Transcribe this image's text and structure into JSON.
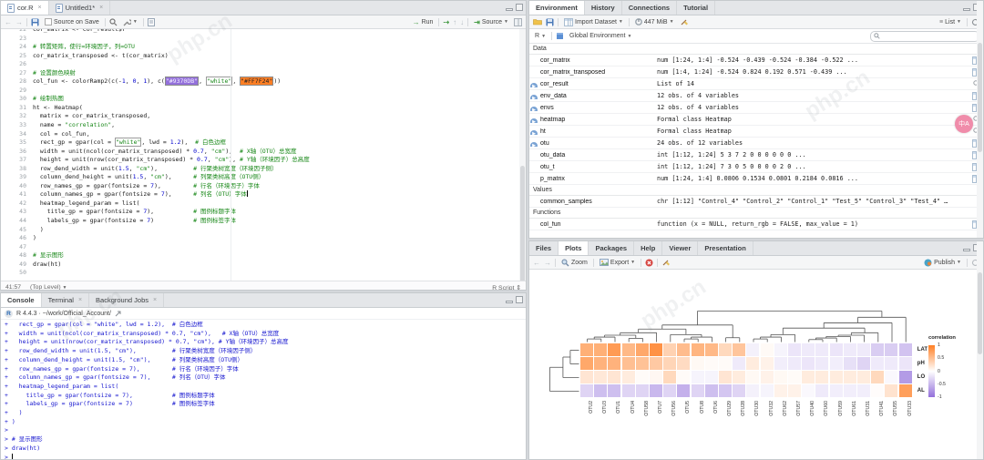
{
  "editor": {
    "tabs": [
      {
        "label": "cor.R",
        "active": true
      },
      {
        "label": "Untitled1*",
        "active": false
      }
    ],
    "toolbar": {
      "source_on_save": "Source on Save",
      "run_label": "Run",
      "source_label": "Source"
    },
    "first_line_number": 22,
    "cursor_line": 41,
    "code_lines": [
      "cor_matrix <- cor_result$r",
      "",
      "# 转置矩阵，使行=环境因子，列=OTU",
      "cor_matrix_transposed <- t(cor_matrix)",
      "",
      "# 设置颜色映射",
      "col_fun <- colorRamp2(c(-1, 0, 1), c(\"#9370DB\", \"white\", \"#FF7F24\"))",
      "",
      "# 绘制热图",
      "ht <- Heatmap(",
      "  matrix = cor_matrix_transposed,",
      "  name = \"correlation\",",
      "  col = col_fun,",
      "  rect_gp = gpar(col = \"white\", lwd = 1.2),  # 白色边框",
      "  width = unit(ncol(cor_matrix_transposed) * 0.7, \"cm\"),  # X轴（OTU）总宽度",
      "  height = unit(nrow(cor_matrix_transposed) * 0.7, \"cm\"), # Y轴（环境因子）总高度",
      "  row_dend_width = unit(1.5, \"cm\"),          # 行聚类树宽度（环境因子侧）",
      "  column_dend_height = unit(1.5, \"cm\"),      # 列聚类树高度（OTU侧）",
      "  row_names_gp = gpar(fontsize = 7),         # 行名（环境因子）字体",
      "  column_names_gp = gpar(fontsize = 7),      # 列名（OTU）字体",
      "  heatmap_legend_param = list(",
      "    title_gp = gpar(fontsize = 7),           # 图例标题字体",
      "    labels_gp = gpar(fontsize = 7)           # 图例标签字体",
      "  )",
      ")",
      "",
      "# 显示图形",
      "draw(ht)",
      ""
    ],
    "status": {
      "position": "41:57",
      "scope": "(Top Level)",
      "doctype": "R Script"
    }
  },
  "console": {
    "tabs": [
      {
        "label": "Console",
        "active": true,
        "closable": false
      },
      {
        "label": "Terminal",
        "active": false,
        "closable": true
      },
      {
        "label": "Background Jobs",
        "active": false,
        "closable": true
      }
    ],
    "runtime": "R 4.4.3 · ~/work/Official_Account/",
    "lines": [
      "+   rect_gp = gpar(col = \"white\", lwd = 1.2),  # 白色边框",
      "+   width = unit(ncol(cor_matrix_transposed) * 0.7, \"cm\"),   # X轴（OTU）总宽度",
      "+   height = unit(nrow(cor_matrix_transposed) * 0.7, \"cm\"), # Y轴（环境因子）总高度",
      "+   row_dend_width = unit(1.5, \"cm\"),          # 行聚类树宽度（环境因子侧）",
      "+   column_dend_height = unit(1.5, \"cm\"),      # 列聚类树高度（OTU侧）",
      "+   row_names_gp = gpar(fontsize = 7),         # 行名（环境因子）字体",
      "+   column_names_gp = gpar(fontsize = 7),      # 列名（OTU）字体",
      "+   heatmap_legend_param = list(",
      "+     title_gp = gpar(fontsize = 7),           # 图例标题字体",
      "+     labels_gp = gpar(fontsize = 7)           # 图例标签字体",
      "+   )",
      "+ )",
      "> ",
      "> # 显示图形",
      "> draw(ht)",
      "> "
    ]
  },
  "environment": {
    "tabs": [
      {
        "label": "Environment",
        "active": true
      },
      {
        "label": "History",
        "active": false
      },
      {
        "label": "Connections",
        "active": false
      },
      {
        "label": "Tutorial",
        "active": false
      }
    ],
    "toolbar": {
      "import_label": "Import Dataset",
      "memory_label": "447 MiB",
      "list_label": "List",
      "lang_label": "R",
      "scope_label": "Global Environment"
    },
    "sections": [
      {
        "title": "Data",
        "rows": [
          {
            "name": "cor_matrix",
            "value": "num [1:24, 1:4] -0.524 -0.439 -0.524 -0.384 -0.522 ...",
            "expand": false,
            "action": "grid"
          },
          {
            "name": "cor_matrix_transposed",
            "value": "num [1:4, 1:24] -0.524 0.824 0.192 0.571 -0.439 ...",
            "expand": false,
            "action": "grid"
          },
          {
            "name": "cor_result",
            "value": "List of 14",
            "expand": true,
            "action": "search"
          },
          {
            "name": "env_data",
            "value": "12 obs. of 4 variables",
            "expand": true,
            "action": "grid"
          },
          {
            "name": "envs",
            "value": "12 obs. of 4 variables",
            "expand": true,
            "action": "grid"
          },
          {
            "name": "heatmap",
            "value": "Formal class Heatmap",
            "expand": true,
            "action": "search"
          },
          {
            "name": "ht",
            "value": "Formal class Heatmap",
            "expand": true,
            "action": "search"
          },
          {
            "name": "otu",
            "value": "24 obs. of 12 variables",
            "expand": true,
            "action": "grid"
          },
          {
            "name": "otu_data",
            "value": "int [1:12, 1:24] 5 3 7 2 0 0 0 0 0 0 ...",
            "expand": false,
            "action": "grid"
          },
          {
            "name": "otu_t",
            "value": "int [1:12, 1:24] 7 3 0 5 0 0 0 0 2 0 ...",
            "expand": false,
            "action": "grid"
          },
          {
            "name": "p_matrix",
            "value": "num [1:24, 1:4] 0.0806 0.1534 0.0801 0.2184 0.0816 ...",
            "expand": false,
            "action": "grid"
          }
        ]
      },
      {
        "title": "Values",
        "rows": [
          {
            "name": "common_samples",
            "value": "chr [1:12] \"Control_4\" \"Control_2\" \"Control_1\" \"Test_5\" \"Control_3\" \"Test_4\" …",
            "expand": false,
            "action": "none"
          }
        ]
      },
      {
        "title": "Functions",
        "rows": [
          {
            "name": "col_fun",
            "value": "function (x = NULL, return_rgb = FALSE, max_value = 1)",
            "expand": false,
            "action": "grid"
          }
        ]
      }
    ]
  },
  "plots": {
    "tabs": [
      {
        "label": "Files",
        "active": false
      },
      {
        "label": "Plots",
        "active": true
      },
      {
        "label": "Packages",
        "active": false
      },
      {
        "label": "Help",
        "active": false
      },
      {
        "label": "Viewer",
        "active": false
      },
      {
        "label": "Presentation",
        "active": false
      }
    ],
    "toolbar": {
      "zoom_label": "Zoom",
      "export_label": "Export",
      "publish_label": "Publish"
    }
  },
  "chart_data": {
    "type": "heatmap",
    "title": "",
    "legend": {
      "title": "correlation",
      "ticks": [
        1,
        0.5,
        0,
        -0.5,
        -1
      ]
    },
    "colors": {
      "positive": "#FF7F24",
      "zero": "#FFFFFF",
      "negative": "#9370DB"
    },
    "rows": [
      "LAT",
      "pH",
      "LO",
      "AL"
    ],
    "columns": [
      "OTU2",
      "OTU3",
      "OTU1",
      "OTU4",
      "OTU58",
      "OTU7",
      "OTU56",
      "OTU5",
      "OTU8",
      "OTU6",
      "OTU29",
      "OTU28",
      "OTU30",
      "OTU32",
      "OTU62",
      "OTU57",
      "OTU40",
      "OTU60",
      "OTU59",
      "OTU61",
      "OTU31",
      "OTU41",
      "OTU55",
      "OTU33"
    ],
    "values": [
      [
        0.62,
        0.62,
        0.78,
        0.55,
        0.68,
        0.85,
        0.35,
        0.52,
        0.58,
        0.55,
        0.3,
        0.45,
        -0.1,
        0.04,
        -0.08,
        -0.18,
        -0.15,
        -0.15,
        -0.18,
        -0.15,
        -0.15,
        -0.35,
        -0.35,
        -0.42
      ],
      [
        0.68,
        0.6,
        0.6,
        0.5,
        0.48,
        0.42,
        0.33,
        0.28,
        0.05,
        0.03,
        0.03,
        -0.15,
        0.15,
        0.1,
        -0.12,
        -0.15,
        -0.18,
        -0.15,
        -0.12,
        -0.22,
        -0.3,
        -0.15,
        -0.15,
        -0.18
      ],
      [
        0.2,
        0.18,
        0.2,
        0.15,
        0.03,
        0.06,
        0.3,
        0.03,
        -0.08,
        -0.08,
        0.2,
        0.15,
        0.05,
        0.1,
        0.05,
        0.03,
        0.15,
        0.15,
        0.15,
        0.15,
        0.15,
        0.3,
        -0.05,
        -0.7
      ],
      [
        -0.3,
        -0.45,
        -0.45,
        -0.3,
        -0.3,
        -0.5,
        -0.3,
        -0.55,
        -0.3,
        -0.45,
        -0.4,
        -0.3,
        -0.1,
        -0.08,
        0.1,
        0.1,
        -0.05,
        -0.15,
        -0.12,
        -0.12,
        -0.12,
        0.02,
        0.22,
        0.75
      ]
    ],
    "col_dendrogram": {
      "h": 1.0,
      "c": [
        {
          "h": 0.55,
          "c": [
            {
              "h": 0.42,
              "c": [
                {
                  "h": 0.3,
                  "c": [
                    {
                      "h": 0.22,
                      "c": [
                        {
                          "h": 0.16,
                          "c": [
                            {
                              "h": 0.1,
                              "c": [
                                0,
                                1
                              ]
                            },
                            2
                          ]
                        },
                        {
                          "h": 0.12,
                          "c": [
                            3,
                            4
                          ]
                        }
                      ]
                    },
                    5
                  ]
                },
                {
                  "h": 0.24,
                  "c": [
                    6,
                    {
                      "h": 0.16,
                      "c": [
                        {
                          "h": 0.1,
                          "c": [
                            7,
                            8
                          ]
                        },
                        9
                      ]
                    }
                  ]
                }
              ]
            },
            {
              "h": 0.14,
              "c": [
                10,
                11
              ]
            }
          ]
        },
        {
          "h": 0.8,
          "c": [
            {
              "h": 0.62,
              "c": [
                {
                  "h": 0.45,
                  "c": [
                    {
                      "h": 0.24,
                      "c": [
                        15,
                        {
                          "h": 0.16,
                          "c": [
                            {
                              "h": 0.1,
                              "c": [
                                12,
                                13
                              ]
                            },
                            14
                          ]
                        }
                      ]
                    },
                    {
                      "h": 0.3,
                      "c": [
                        {
                          "h": 0.22,
                          "c": [
                            {
                              "h": 0.18,
                              "c": [
                                {
                                  "h": 0.13,
                                  "c": [
                                    {
                                      "h": 0.08,
                                      "c": [
                                        16,
                                        17
                                      ]
                                    },
                                    18
                                  ]
                                },
                                19
                              ]
                            },
                            20
                          ]
                        },
                        21
                      ]
                    }
                  ]
                },
                22
              ]
            },
            23
          ]
        }
      ]
    },
    "row_dendrogram": {
      "h": 1.0,
      "c": [
        {
          "h": 0.55,
          "c": [
            {
              "h": 0.3,
              "c": [
                0,
                1
              ]
            },
            2
          ]
        },
        3
      ]
    }
  },
  "watermark": "php.cn",
  "badge": "中A"
}
